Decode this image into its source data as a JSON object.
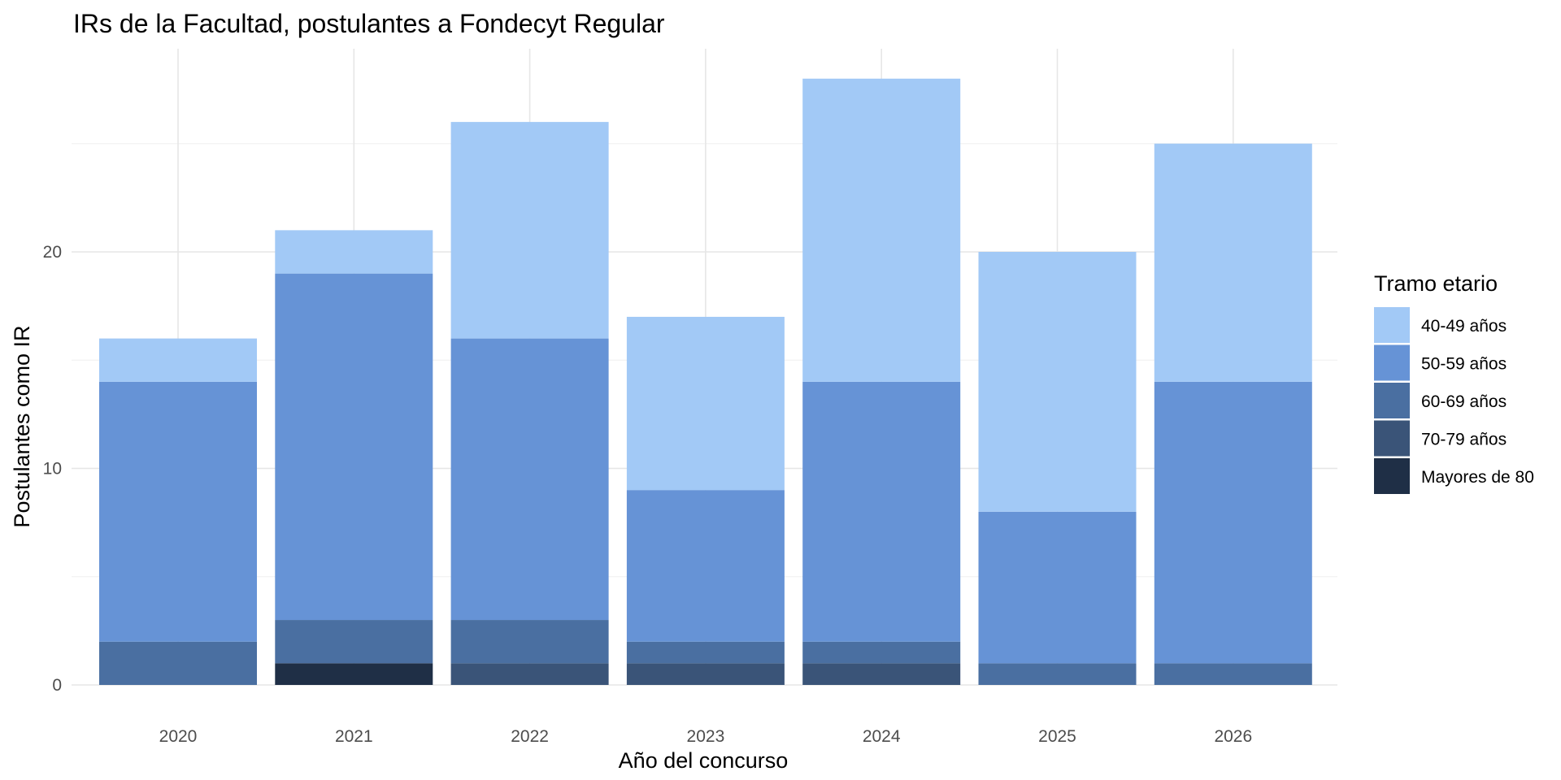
{
  "chart_data": {
    "type": "bar",
    "stacked": true,
    "title": "IRs de la Facultad, postulantes a Fondecyt Regular",
    "xlabel": "Año del concurso",
    "ylabel": "Postulantes como IR",
    "categories": [
      "2020",
      "2021",
      "2022",
      "2023",
      "2024",
      "2025",
      "2026"
    ],
    "y_ticks": [
      "0",
      "10",
      "20"
    ],
    "ylim": [
      0,
      29
    ],
    "grid": true,
    "legend": {
      "title": "Tramo etario",
      "position": "right"
    },
    "series": [
      {
        "name": "Mayores de 80",
        "color": "#1f2f46",
        "values": [
          0,
          1,
          0,
          0,
          0,
          0,
          0
        ]
      },
      {
        "name": "70-79 años",
        "color": "#3a5478",
        "values": [
          0,
          0,
          1,
          1,
          1,
          0,
          0
        ]
      },
      {
        "name": "60-69 años",
        "color": "#4a6fa1",
        "values": [
          2,
          2,
          2,
          1,
          1,
          1,
          1
        ]
      },
      {
        "name": "50-59 años",
        "color": "#6693d6",
        "values": [
          12,
          16,
          13,
          7,
          12,
          7,
          13
        ]
      },
      {
        "name": "40-49 años",
        "color": "#a2c9f6",
        "values": [
          2,
          2,
          10,
          8,
          14,
          12,
          11
        ]
      }
    ],
    "legend_order": [
      "40-49 años",
      "50-59 años",
      "60-69 años",
      "70-79 años",
      "Mayores de 80"
    ]
  }
}
